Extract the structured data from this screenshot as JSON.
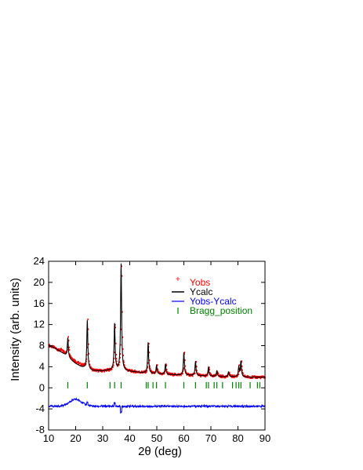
{
  "chart_data": {
    "type": "scatter",
    "title": "",
    "xlabel": "2θ (deg)",
    "ylabel": "Intensity (arb. units)",
    "xlim": [
      10,
      90
    ],
    "ylim": [
      -8,
      24
    ],
    "xticks": [
      10,
      20,
      30,
      40,
      50,
      60,
      70,
      80,
      90
    ],
    "yticks": [
      -8,
      -4,
      0,
      4,
      8,
      12,
      16,
      20,
      24
    ],
    "legend_position": "top-right",
    "colors": {
      "Yobs": "#ff0000",
      "Ycalc": "#000000",
      "Yobs-Ycalc": "#0000ff",
      "Bragg_position": "#008000"
    },
    "legend": [
      "Yobs",
      "Ycalc",
      "Yobs-Ycalc",
      "Bragg_position"
    ],
    "background": {
      "x": [
        10,
        12,
        14,
        16,
        18,
        20,
        22,
        24,
        26,
        28,
        30,
        32,
        34,
        36,
        38,
        40,
        42,
        44,
        46,
        48,
        50,
        55,
        60,
        65,
        70,
        75,
        80,
        85,
        90
      ],
      "y": [
        8.0,
        7.6,
        7.0,
        6.3,
        5.4,
        4.6,
        4.0,
        3.6,
        3.3,
        3.2,
        3.2,
        3.3,
        3.4,
        3.3,
        3.2,
        3.1,
        3.0,
        2.9,
        2.8,
        2.7,
        2.6,
        2.5,
        2.4,
        2.3,
        2.2,
        2.1,
        2.1,
        2.0,
        2.0
      ]
    },
    "peaks": {
      "x": [
        17.1,
        24.3,
        34.4,
        36.8,
        46.8,
        49.9,
        53.2,
        60.0,
        64.3,
        69.1,
        72.2,
        76.5,
        80.3,
        81.1
      ],
      "y": [
        9.5,
        12.8,
        12.1,
        23.5,
        8.6,
        4.2,
        4.5,
        6.7,
        5.0,
        3.9,
        3.2,
        3.0,
        3.9,
        5.0
      ]
    },
    "difference_offset": -3.5,
    "bragg_level": 0.5,
    "bragg_positions": [
      17.1,
      24.3,
      32.7,
      34.4,
      36.8,
      46.1,
      46.8,
      48.6,
      49.9,
      53.2,
      60.0,
      64.3,
      68.3,
      69.1,
      71.2,
      72.2,
      74.3,
      78.0,
      79.3,
      80.3,
      81.1,
      84.5,
      87.2,
      88.1
    ]
  }
}
